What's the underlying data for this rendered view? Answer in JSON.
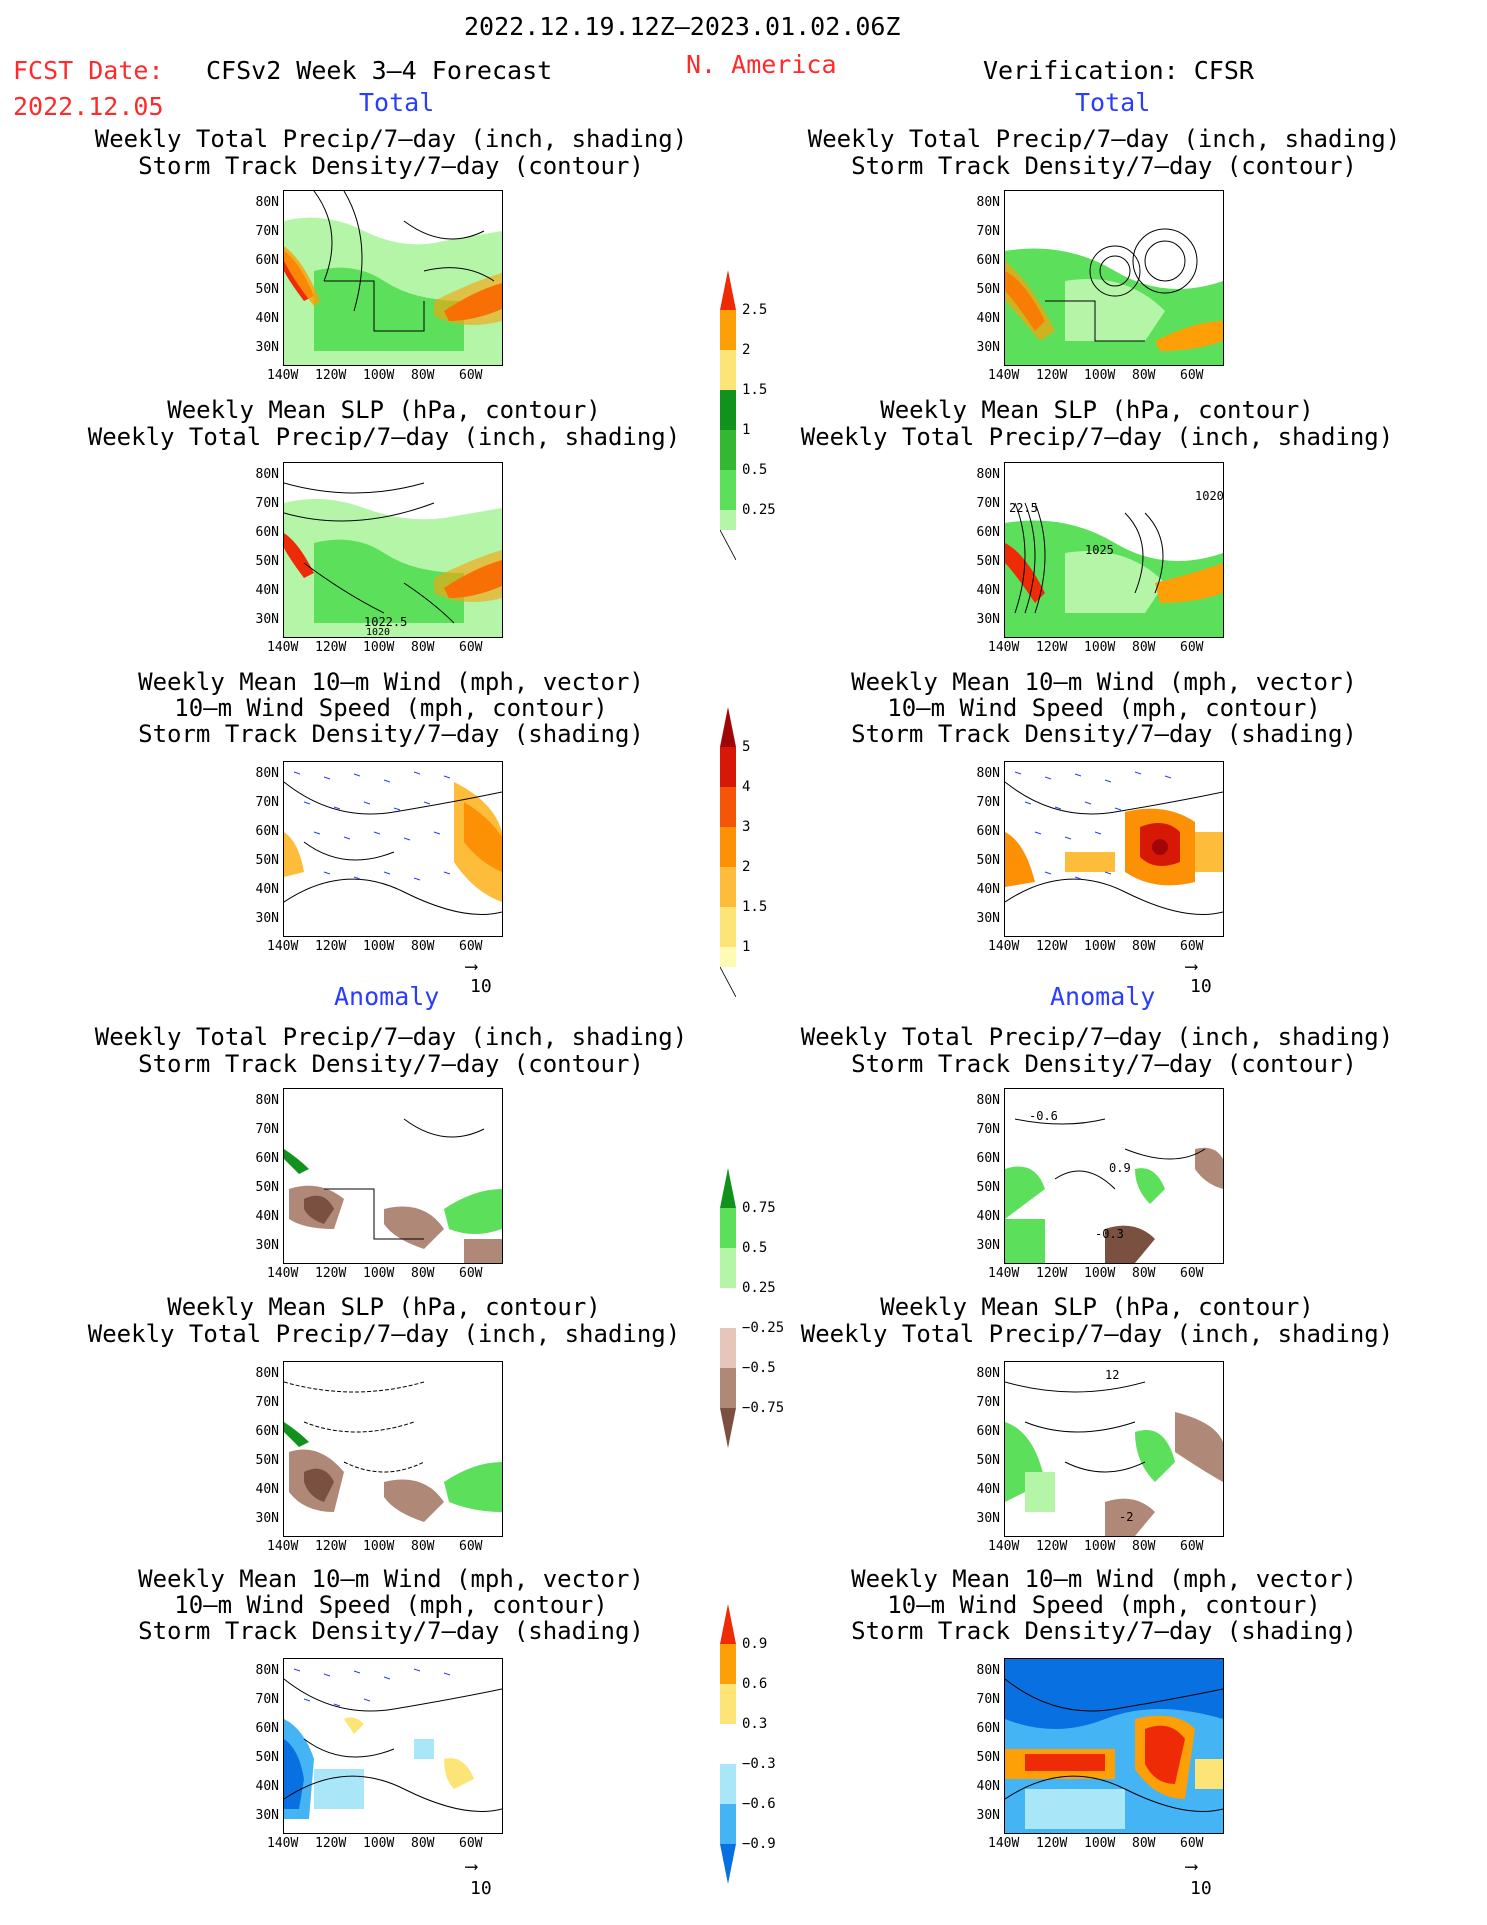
{
  "header": {
    "date_range": "2022.12.19.12Z–2023.01.02.06Z",
    "fcst_date_label": "FCST Date:",
    "fcst_date": "2022.12.05",
    "model_title": "CFSv2 Week 3–4 Forecast",
    "region": "N. America",
    "verification": "Verification: CFSR"
  },
  "sections": {
    "total": "Total",
    "anomaly": "Anomaly"
  },
  "panel_titles": {
    "p1": [
      "Weekly Total Precip/7–day (inch, shading)",
      "Storm Track Density/7–day (contour)"
    ],
    "p2": [
      "Weekly Mean SLP (hPa, contour)",
      "Weekly Total Precip/7–day (inch, shading)"
    ],
    "p3": [
      "Weekly Mean 10–m Wind (mph, vector)",
      "10–m Wind Speed (mph, contour)",
      "Storm Track Density/7–day (shading)"
    ]
  },
  "axes": {
    "lat": [
      "80N",
      "70N",
      "60N",
      "50N",
      "40N",
      "30N"
    ],
    "lon": [
      "140W",
      "120W",
      "100W",
      "80W",
      "60W"
    ]
  },
  "vector_ref": "10",
  "colorbars": {
    "precip_total": [
      "2.5",
      "2",
      "1.5",
      "1",
      "0.5",
      "0.25"
    ],
    "storm_total": [
      "5",
      "4",
      "3",
      "2",
      "1.5",
      "1"
    ],
    "precip_anom": [
      "0.75",
      "0.5",
      "0.25",
      "−0.25",
      "−0.5",
      "−0.75"
    ],
    "storm_anom": [
      "0.9",
      "0.6",
      "0.3",
      "−0.3",
      "−0.6",
      "−0.9"
    ]
  },
  "contour_labels": {
    "fc_slp_total": [
      "1022.5",
      "1020"
    ],
    "vf_slp_total": [
      "22.5",
      "1025",
      "1020"
    ],
    "vf_precip_anom": [
      "-0.6",
      "0.9",
      "-0.3"
    ],
    "vf_slp_anom": [
      "12",
      "-2"
    ]
  },
  "colors": {
    "precip_scale": [
      "#b4f5a8",
      "#5ce05c",
      "#34b834",
      "#10921c",
      "#fde476",
      "#fd9f06",
      "#ef2a06"
    ],
    "storm_scale": [
      "#fefcb4",
      "#fde476",
      "#fdbd3a",
      "#fd9106",
      "#f45506",
      "#d71806",
      "#a00606"
    ],
    "anom_precip_neg": [
      "#e6c6ba",
      "#b08878",
      "#7a5040"
    ],
    "anom_storm_neg": [
      "#a8e6f8",
      "#44b4f4",
      "#0870e0"
    ],
    "title_red": "#ff2a2a",
    "label_blue": "#2a3cff"
  }
}
